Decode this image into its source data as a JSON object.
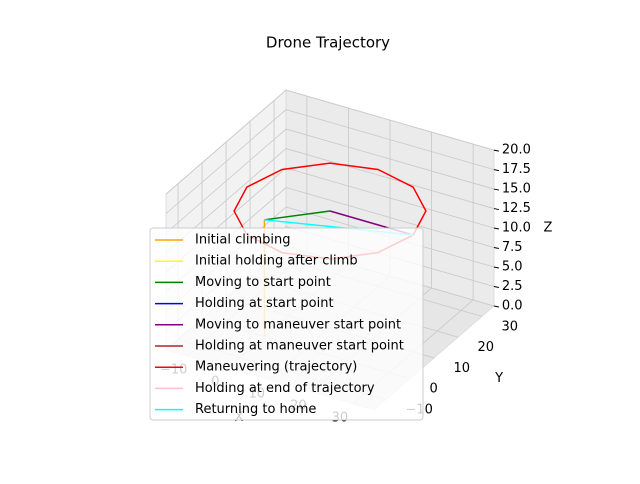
{
  "chart_data": {
    "type": "line3d",
    "title": "Drone Trajectory",
    "xlabel": "X",
    "ylabel": "Y",
    "zlabel": "Z",
    "xlim": [
      -15,
      35
    ],
    "ylim": [
      -15,
      35
    ],
    "zlim": [
      0,
      20
    ],
    "xticks": [
      {
        "value": -10,
        "label": "−10"
      },
      0,
      10,
      20,
      30
    ],
    "yticks": [
      {
        "value": -10,
        "label": "−10"
      },
      0,
      10,
      20,
      30
    ],
    "zticks": [
      {
        "value": 0,
        "label": "0.0"
      },
      {
        "value": 2.5,
        "label": "2.5"
      },
      {
        "value": 5,
        "label": "5.0"
      },
      {
        "value": 7.5,
        "label": "7.5"
      },
      {
        "value": 10,
        "label": "10.0"
      },
      {
        "value": 12.5,
        "label": "12.5"
      },
      {
        "value": 15,
        "label": "15.0"
      },
      {
        "value": 17.5,
        "label": "17.5"
      },
      {
        "value": 20,
        "label": "20.0"
      }
    ],
    "grid": true,
    "legend": "lower left",
    "series": [
      {
        "name": "Initial climbing",
        "color": "orange",
        "x": [
          0,
          0
        ],
        "y": [
          0,
          0
        ],
        "z": [
          0,
          15
        ]
      },
      {
        "name": "Initial holding after climb",
        "color": "yellow",
        "x": [
          0,
          0
        ],
        "y": [
          0,
          0
        ],
        "z": [
          15,
          15
        ]
      },
      {
        "name": "Moving to start point",
        "color": "green",
        "x": [
          0,
          10
        ],
        "y": [
          0,
          10
        ],
        "z": [
          15,
          15
        ]
      },
      {
        "name": "Holding at start point",
        "color": "blue",
        "x": [
          10,
          10
        ],
        "y": [
          10,
          10
        ],
        "z": [
          15,
          15
        ]
      },
      {
        "name": "Moving to maneuver start point",
        "color": "purple",
        "x": [
          10,
          30
        ],
        "y": [
          10,
          10
        ],
        "z": [
          15,
          15
        ]
      },
      {
        "name": "Holding at maneuver start point",
        "color": "brown",
        "x": [
          30,
          30
        ],
        "y": [
          10,
          10
        ],
        "z": [
          15,
          15
        ]
      },
      {
        "name": "Maneuvering (trajectory)",
        "color": "red",
        "x": [
          30,
          27.3,
          20,
          10,
          0,
          -7.3,
          -10,
          -7.3,
          0,
          10,
          20,
          27.3,
          30
        ],
        "y": [
          10,
          20,
          27.3,
          30,
          27.3,
          20,
          10,
          0,
          -7.3,
          -10,
          -7.3,
          0,
          10
        ],
        "z": [
          15,
          15,
          15,
          15,
          15,
          15,
          15,
          15,
          15,
          15,
          15,
          15,
          15
        ]
      },
      {
        "name": "Holding at end of trajectory",
        "color": "pink",
        "x": [
          30,
          30
        ],
        "y": [
          10,
          10
        ],
        "z": [
          15,
          15
        ]
      },
      {
        "name": "Returning to home",
        "color": "cyan",
        "x": [
          30,
          0
        ],
        "y": [
          10,
          0
        ],
        "z": [
          15,
          15
        ]
      }
    ]
  }
}
